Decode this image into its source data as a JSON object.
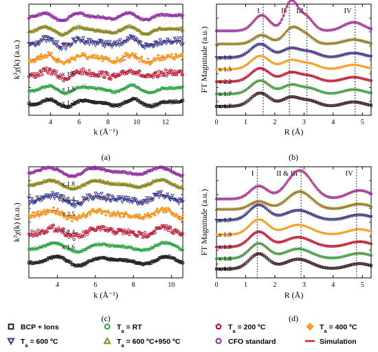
{
  "series_styles": [
    {
      "key": "bcp",
      "label": "BCP + Ions",
      "color": "#1c1c1c",
      "marker": "square"
    },
    {
      "key": "rt",
      "label": "T_a = RT",
      "label_main": "T",
      "label_sub": "a",
      "label_rest": " = RT",
      "color": "#1faa3f",
      "marker": "circle"
    },
    {
      "key": "t200",
      "label": "T_a = 200 ºC",
      "label_main": "T",
      "label_sub": "a",
      "label_rest": " = 200 ºC",
      "color": "#b3122e",
      "marker": "pentagon"
    },
    {
      "key": "t400",
      "label": "T_a = 400 ºC",
      "label_main": "T",
      "label_sub": "a",
      "label_rest": " = 400 ºC",
      "color": "#f5a12a",
      "marker": "diamond"
    },
    {
      "key": "t600",
      "label": "T_a = 600 ºC",
      "label_main": "T",
      "label_sub": "a",
      "label_rest": " = 600 ºC",
      "color": "#2a3a93",
      "marker": "triangle-down"
    },
    {
      "key": "t600950",
      "label": "T_a = 600 ºC+950 ºC",
      "label_main": "T",
      "label_sub": "a",
      "label_rest": " = 600 ºC+950 ºC",
      "color": "#8a8a22",
      "marker": "triangle-up"
    },
    {
      "key": "cfo",
      "label": "CFO standard",
      "color": "#8e2fa6",
      "marker": "hexagon"
    },
    {
      "key": "sim",
      "label": "Simulation",
      "color": "#e8141b",
      "marker": "line"
    }
  ],
  "chart_data": [
    {
      "id": "a",
      "type": "scatter",
      "panel_label": "(a)",
      "xlabel": "k (Å⁻¹)",
      "ylabel": "k²χ(k) (a.u.)",
      "xlim": [
        2.5,
        13.2
      ],
      "xticks": [
        4,
        6,
        8,
        10,
        12
      ],
      "series_order": [
        "bcp",
        "rt",
        "t200",
        "t400",
        "t600",
        "t600950",
        "cfo"
      ],
      "scale_labels": [
        {
          "series": "bcp",
          "text": "x 1.2"
        },
        {
          "series": "rt",
          "text": "x 1.5"
        },
        {
          "series": "t200",
          "text": "x 1.5"
        }
      ]
    },
    {
      "id": "b",
      "type": "line",
      "panel_label": "(b)",
      "xlabel": "R (Å)",
      "ylabel": "FT Magnitude (a.u.)",
      "xlim": [
        0,
        5.3
      ],
      "xticks": [
        0,
        1,
        2,
        3,
        4,
        5
      ],
      "series_order": [
        "bcp",
        "rt",
        "t200",
        "t400",
        "t600",
        "t600950",
        "cfo"
      ],
      "scale_labels": [
        {
          "series": "bcp",
          "text": "x 1.7"
        },
        {
          "series": "rt",
          "text": "x 1.7"
        },
        {
          "series": "t200",
          "text": "x 2.2"
        },
        {
          "series": "t400",
          "text": "x 1.5"
        },
        {
          "series": "t600",
          "text": "x 1.9"
        }
      ],
      "shell_lines": [
        {
          "label": "I",
          "x": 1.6
        },
        {
          "label": "II",
          "x": 2.5
        },
        {
          "label": "III",
          "x": 3.1
        },
        {
          "label": "IV",
          "x": 4.75
        }
      ]
    },
    {
      "id": "c",
      "type": "scatter",
      "panel_label": "(c)",
      "xlabel": "k (Å⁻¹)",
      "ylabel": "k²χ(k) (a.u.)",
      "xlim": [
        2.5,
        10.6
      ],
      "xticks": [
        4,
        6,
        8,
        10
      ],
      "series_order": [
        "bcp",
        "rt",
        "t200",
        "t400",
        "t600",
        "t600950",
        "cfo"
      ],
      "scale_labels": [
        {
          "series": "rt",
          "text": "x 1.6"
        },
        {
          "series": "t200",
          "text": "x 2.4"
        },
        {
          "series": "t400",
          "text": "x 2.5"
        },
        {
          "series": "t600",
          "text": "x 2.4"
        },
        {
          "series": "t600950",
          "text": "x 1.8"
        }
      ]
    },
    {
      "id": "d",
      "type": "line",
      "panel_label": "(d)",
      "xlabel": "R (Å)",
      "ylabel": "FT Magnitude (a.u.)",
      "xlim": [
        0,
        5.3
      ],
      "xticks": [
        0,
        1,
        2,
        3,
        4,
        5
      ],
      "series_order": [
        "bcp",
        "rt",
        "t200",
        "t400",
        "t600",
        "t600950",
        "cfo"
      ],
      "scale_labels": [
        {
          "series": "bcp",
          "text": "x 1.3"
        },
        {
          "series": "rt",
          "text": "x 1.8"
        },
        {
          "series": "t200",
          "text": "x 1.9"
        },
        {
          "series": "t400",
          "text": "x 1.9"
        },
        {
          "series": "t600",
          "text": "x 1.7"
        }
      ],
      "shell_lines": [
        {
          "label": "I",
          "x": 1.4
        },
        {
          "label": "II & III",
          "x": 2.9
        },
        {
          "label": "IV",
          "x": 4.8
        }
      ]
    }
  ]
}
